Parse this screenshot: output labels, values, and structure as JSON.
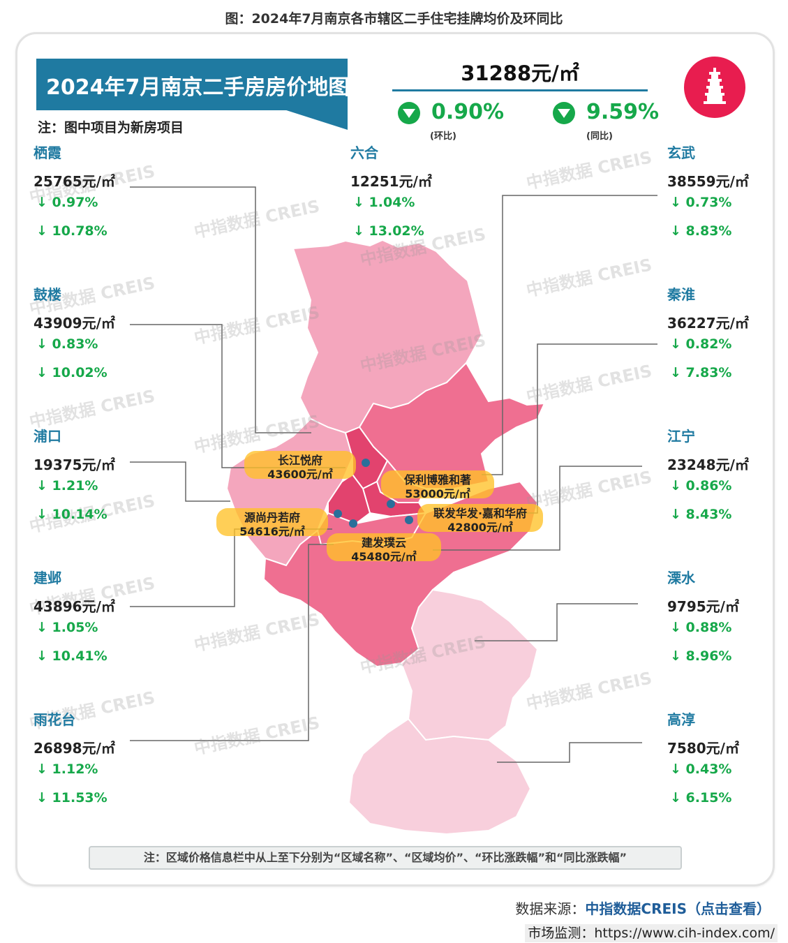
{
  "caption": "图：2024年7月南京各市辖区二手住宅挂牌均价及环同比",
  "banner": {
    "title": "2024年7月南京二手房房价地图",
    "note": "注：图中项目为新房项目"
  },
  "city_average": {
    "price": "31288元/㎡",
    "mom_value": "0.90%",
    "mom_label": "(环比)",
    "yoy_value": "9.59%",
    "yoy_label": "(同比)",
    "direction_icon": "down-triangle-icon",
    "color_down": "#16a84a"
  },
  "badge_icon": "pagoda-icon",
  "districts": [
    {
      "name": "栖霞",
      "price": "25765元/㎡",
      "mom": "↓ 0.97%",
      "yoy": "↓ 10.78%"
    },
    {
      "name": "六合",
      "price": "12251元/㎡",
      "mom": "↓ 1.04%",
      "yoy": "↓ 13.02%"
    },
    {
      "name": "玄武",
      "price": "38559元/㎡",
      "mom": "↓ 0.73%",
      "yoy": "↓ 8.83%"
    },
    {
      "name": "鼓楼",
      "price": "43909元/㎡",
      "mom": "↓ 0.83%",
      "yoy": "↓ 10.02%"
    },
    {
      "name": "秦淮",
      "price": "36227元/㎡",
      "mom": "↓ 0.82%",
      "yoy": "↓ 7.83%"
    },
    {
      "name": "浦口",
      "price": "19375元/㎡",
      "mom": "↓ 1.21%",
      "yoy": "↓ 10.14%"
    },
    {
      "name": "江宁",
      "price": "23248元/㎡",
      "mom": "↓ 0.86%",
      "yoy": "↓ 8.43%"
    },
    {
      "name": "建邺",
      "price": "43896元/㎡",
      "mom": "↓ 1.05%",
      "yoy": "↓ 10.41%"
    },
    {
      "name": "溧水",
      "price": "9795元/㎡",
      "mom": "↓ 0.88%",
      "yoy": "↓ 8.96%"
    },
    {
      "name": "雨花台",
      "price": "26898元/㎡",
      "mom": "↓ 1.12%",
      "yoy": "↓ 11.53%"
    },
    {
      "name": "高淳",
      "price": "7580元/㎡",
      "mom": "↓ 0.43%",
      "yoy": "↓ 6.15%"
    }
  ],
  "projects": [
    {
      "name": "长江悦府",
      "price": "43600元/㎡"
    },
    {
      "name": "保利博雅和著",
      "price": "53000元/㎡"
    },
    {
      "name": "源尚丹若府",
      "price": "54616元/㎡"
    },
    {
      "name": "联发华发·嘉和华府",
      "price": "42800元/㎡"
    },
    {
      "name": "建发璞云",
      "price": "45480元/㎡"
    }
  ],
  "watermark": "中指数据 CREIS",
  "footnote": "注：区域价格信息栏中从上至下分别为“区域名称”、“区域均价”、“环比涨跌幅”和“同比涨跌幅”",
  "source": {
    "label": "数据来源：",
    "name": "中指数据CREIS（点击查看）"
  },
  "monitor": {
    "label": "市场监测：",
    "url": "https://www.cih-index.com/"
  },
  "colors": {
    "banner": "#1f7aa1",
    "map_light": "#f4a6bd",
    "map_mid": "#ef6f91",
    "map_dark": "#e2436e",
    "map_pale": "#f8cfdc",
    "project_label": "#ffc128",
    "project_dot": "#2a6f9a"
  }
}
